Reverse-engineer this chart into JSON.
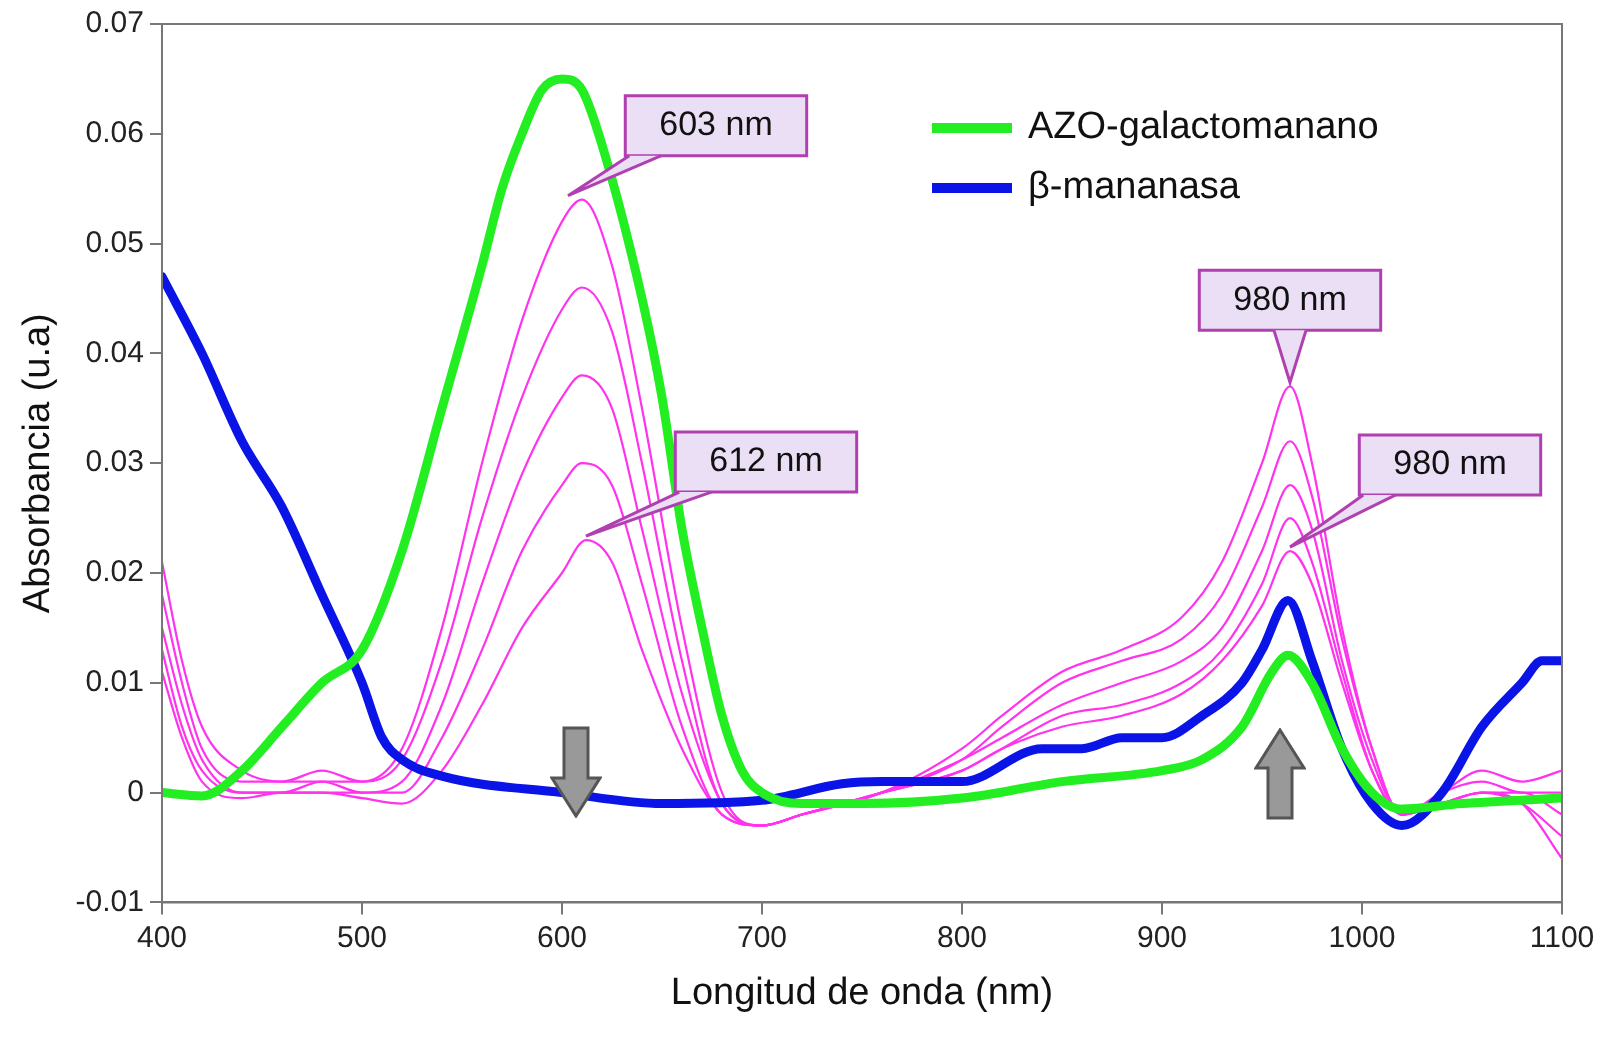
{
  "chart_data": {
    "type": "line",
    "xlabel": "Longitud de onda (nm)",
    "ylabel": "Absorbancia (u.a)",
    "xlim": [
      400,
      1100
    ],
    "xticks": [
      400,
      500,
      600,
      700,
      800,
      900,
      1000,
      1100
    ],
    "ylim": [
      -0.01,
      0.07
    ],
    "yticks": [
      -0.01,
      0,
      0.01,
      0.02,
      0.03,
      0.04,
      0.05,
      0.06,
      0.07
    ],
    "grid": false,
    "legend": "top right",
    "marker": "none",
    "line_style": "solid",
    "series": [
      {
        "name": "AZO-galactomanano",
        "color": "#22ee22",
        "x": [
          400,
          420,
          440,
          460,
          480,
          500,
          520,
          540,
          560,
          570,
          580,
          590,
          600,
          610,
          620,
          640,
          650,
          660,
          670,
          680,
          690,
          700,
          720,
          750,
          800,
          850,
          900,
          920,
          940,
          955,
          963,
          975,
          990,
          1005,
          1020,
          1050,
          1100
        ],
        "values": [
          0.0,
          -0.0003,
          0.002,
          0.006,
          0.01,
          0.013,
          0.022,
          0.035,
          0.048,
          0.055,
          0.06,
          0.064,
          0.065,
          0.064,
          0.059,
          0.045,
          0.036,
          0.024,
          0.015,
          0.007,
          0.002,
          0.0,
          -0.001,
          -0.001,
          -0.0005,
          0.001,
          0.002,
          0.003,
          0.006,
          0.011,
          0.0125,
          0.01,
          0.004,
          0.0,
          -0.0015,
          -0.001,
          -0.0005
        ]
      },
      {
        "name": "β-mananasa",
        "color": "#0a14e6",
        "x": [
          400,
          420,
          440,
          460,
          480,
          500,
          510,
          520,
          540,
          600,
          650,
          700,
          740,
          760,
          800,
          840,
          860,
          880,
          900,
          920,
          940,
          950,
          963,
          975,
          990,
          1005,
          1020,
          1040,
          1060,
          1080,
          1090,
          1100
        ],
        "values": [
          0.047,
          0.04,
          0.032,
          0.026,
          0.018,
          0.01,
          0.005,
          0.003,
          0.0015,
          0.0,
          -0.001,
          -0.0007,
          0.0008,
          0.001,
          0.001,
          0.004,
          0.004,
          0.005,
          0.005,
          0.007,
          0.01,
          0.013,
          0.0175,
          0.012,
          0.004,
          -0.001,
          -0.003,
          0.0,
          0.006,
          0.01,
          0.012,
          0.012
        ]
      },
      {
        "color": "#ff33ee",
        "x": [
          400,
          410,
          420,
          440,
          460,
          480,
          500,
          520,
          540,
          560,
          580,
          600,
          610,
          625,
          640,
          660,
          680,
          700,
          720,
          760,
          800,
          820,
          850,
          880,
          910,
          930,
          950,
          964,
          975,
          990,
          1005,
          1020,
          1040,
          1060,
          1080,
          1100
        ],
        "values": [
          0.021,
          0.012,
          0.006,
          0.002,
          0.001,
          0.002,
          0.001,
          0.004,
          0.015,
          0.03,
          0.043,
          0.052,
          0.054,
          0.048,
          0.035,
          0.015,
          0.0,
          -0.003,
          -0.002,
          0.0,
          0.004,
          0.007,
          0.011,
          0.013,
          0.016,
          0.021,
          0.03,
          0.037,
          0.03,
          0.015,
          0.004,
          -0.002,
          0.0,
          0.002,
          0.001,
          0.002
        ]
      },
      {
        "color": "#ff33ee",
        "x": [
          400,
          410,
          420,
          440,
          460,
          480,
          500,
          520,
          540,
          560,
          580,
          600,
          610,
          625,
          640,
          660,
          680,
          700,
          720,
          760,
          800,
          820,
          850,
          880,
          910,
          930,
          950,
          964,
          975,
          990,
          1005,
          1020,
          1040,
          1060,
          1080,
          1100
        ],
        "values": [
          0.018,
          0.01,
          0.004,
          0.001,
          0.001,
          0.001,
          0.001,
          0.003,
          0.012,
          0.025,
          0.036,
          0.044,
          0.046,
          0.042,
          0.03,
          0.012,
          -0.001,
          -0.003,
          -0.002,
          0.0,
          0.003,
          0.006,
          0.01,
          0.012,
          0.014,
          0.018,
          0.026,
          0.032,
          0.027,
          0.014,
          0.004,
          -0.002,
          0.0,
          0.001,
          0.0,
          0.0
        ]
      },
      {
        "color": "#ff33ee",
        "x": [
          400,
          410,
          420,
          440,
          460,
          480,
          500,
          520,
          540,
          560,
          580,
          600,
          610,
          625,
          640,
          660,
          680,
          700,
          720,
          760,
          800,
          820,
          850,
          880,
          910,
          930,
          950,
          964,
          975,
          990,
          1005,
          1020,
          1040,
          1060,
          1080,
          1100
        ],
        "values": [
          0.015,
          0.008,
          0.003,
          0.0,
          0.0,
          0.001,
          0.0,
          0.001,
          0.008,
          0.019,
          0.029,
          0.036,
          0.038,
          0.035,
          0.024,
          0.009,
          -0.001,
          -0.003,
          -0.002,
          0.0,
          0.003,
          0.005,
          0.008,
          0.01,
          0.012,
          0.015,
          0.022,
          0.028,
          0.024,
          0.012,
          0.003,
          -0.002,
          -0.001,
          0.0,
          0.0,
          -0.002
        ]
      },
      {
        "color": "#ff33ee",
        "x": [
          400,
          410,
          420,
          440,
          460,
          480,
          500,
          520,
          540,
          560,
          580,
          600,
          610,
          625,
          640,
          660,
          680,
          700,
          720,
          760,
          800,
          820,
          850,
          880,
          910,
          930,
          950,
          964,
          975,
          990,
          1005,
          1020,
          1040,
          1060,
          1080,
          1100
        ],
        "values": [
          0.013,
          0.006,
          0.002,
          0.0,
          0.0,
          0.0,
          0.0,
          0.0,
          0.005,
          0.013,
          0.022,
          0.028,
          0.03,
          0.028,
          0.019,
          0.006,
          -0.002,
          -0.003,
          -0.002,
          0.0,
          0.002,
          0.004,
          0.007,
          0.008,
          0.01,
          0.013,
          0.019,
          0.025,
          0.021,
          0.011,
          0.002,
          -0.002,
          -0.001,
          0.0,
          -0.001,
          -0.004
        ]
      },
      {
        "color": "#ff33ee",
        "x": [
          400,
          410,
          420,
          440,
          460,
          480,
          500,
          520,
          540,
          560,
          580,
          600,
          612,
          625,
          640,
          660,
          680,
          700,
          720,
          760,
          800,
          820,
          850,
          880,
          910,
          930,
          950,
          964,
          975,
          990,
          1005,
          1020,
          1040,
          1060,
          1080,
          1100
        ],
        "values": [
          0.011,
          0.005,
          0.001,
          -0.0005,
          0,
          0,
          -0.0005,
          -0.001,
          0.002,
          0.008,
          0.015,
          0.02,
          0.023,
          0.021,
          0.013,
          0.004,
          -0.002,
          -0.003,
          -0.002,
          0.0,
          0.002,
          0.004,
          0.006,
          0.007,
          0.009,
          0.012,
          0.017,
          0.022,
          0.019,
          0.01,
          0.002,
          -0.002,
          -0.001,
          0.0,
          -0.001,
          -0.006
        ]
      }
    ],
    "annotations": [
      {
        "text": "603 nm",
        "x": 603,
        "y": 0.054
      },
      {
        "text": "612 nm",
        "x": 612,
        "y": 0.023
      },
      {
        "text": "980 nm",
        "x": 964,
        "y": 0.037
      },
      {
        "text": "980 nm",
        "x": 964,
        "y": 0.022
      }
    ]
  }
}
